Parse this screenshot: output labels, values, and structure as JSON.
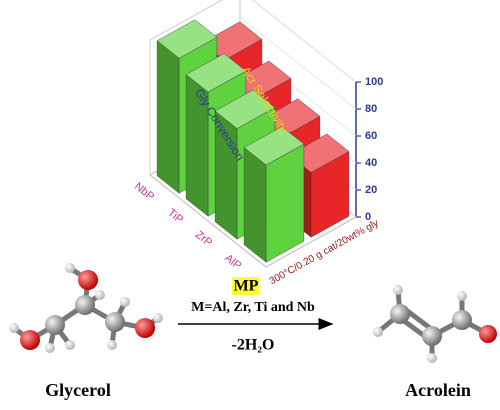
{
  "chart_data": {
    "type": "bar3d",
    "categories": [
      "NbP",
      "TiP",
      "ZrP",
      "AlP"
    ],
    "series": [
      {
        "name": "Gly Conversion",
        "color": "#5fd33f",
        "values": [
          100,
          92,
          82,
          72
        ]
      },
      {
        "name": "Acr Selectivity",
        "color": "#e8262a",
        "values": [
          80,
          68,
          57,
          48
        ]
      }
    ],
    "ylim": [
      0,
      100
    ],
    "yticks": [
      0,
      20,
      40,
      60,
      80,
      100
    ],
    "series_axis_label": "300°C/0.20 g cat/20wt% gly"
  },
  "scheme": {
    "catalyst": "MP",
    "metals": "M=Al, Zr, Ti and Nb",
    "byproduct": "-2H₂O",
    "reactant": "Glycerol",
    "product": "Acrolein"
  }
}
